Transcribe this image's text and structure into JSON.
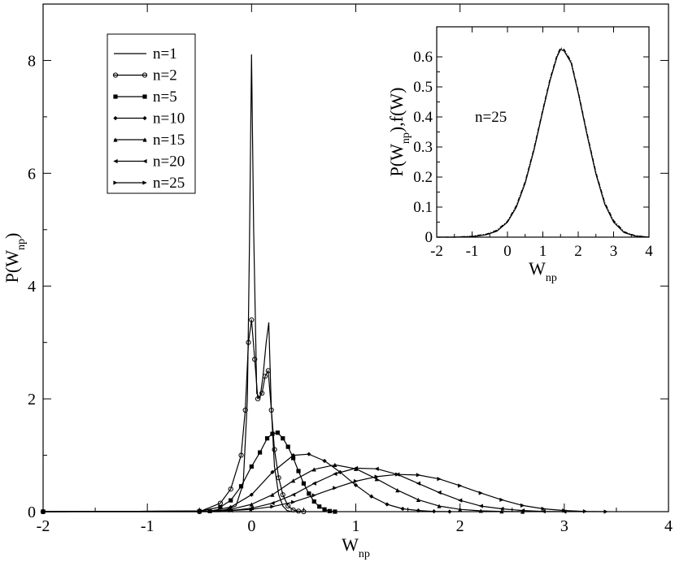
{
  "chart_data": [
    {
      "type": "line",
      "xlabel": "W",
      "xlabel_sub": "np",
      "ylabel": "P(W",
      "ylabel_sub": "np",
      "ylabel_close": ")",
      "xlim": [
        -2,
        4
      ],
      "ylim": [
        0,
        9
      ],
      "xticks": [
        -2,
        -1,
        0,
        1,
        2,
        3,
        4
      ],
      "xtick_labels": [
        "-2",
        "-1",
        "0",
        "1",
        "2",
        "3",
        "4"
      ],
      "yticks": [
        0,
        2,
        4,
        6,
        8
      ],
      "ytick_labels": [
        "0",
        "2",
        "4",
        "6",
        "8"
      ],
      "grid": false,
      "legend_position": "top-left",
      "series": [
        {
          "name": "n=1",
          "marker": "none",
          "x": [
            -2,
            -0.3,
            -0.15,
            -0.08,
            -0.04,
            -0.02,
            0.0,
            0.02,
            0.05,
            0.08,
            0.11,
            0.14,
            0.165,
            0.19,
            0.22,
            0.26,
            0.3,
            0.34,
            0.38
          ],
          "y": [
            0,
            0,
            0.1,
            0.5,
            2.0,
            4.8,
            8.1,
            5.0,
            2.1,
            2.0,
            2.4,
            3.0,
            3.35,
            1.8,
            0.8,
            0.3,
            0.1,
            0.02,
            0
          ]
        },
        {
          "name": "n=2",
          "marker": "circle",
          "x": [
            -2,
            -0.5,
            -0.3,
            -0.2,
            -0.1,
            -0.06,
            -0.03,
            0.0,
            0.03,
            0.06,
            0.1,
            0.13,
            0.16,
            0.19,
            0.22,
            0.26,
            0.3,
            0.35,
            0.4,
            0.45,
            0.5
          ],
          "y": [
            0,
            0,
            0.15,
            0.4,
            1.0,
            1.8,
            3.0,
            3.4,
            2.7,
            2.0,
            2.1,
            2.4,
            2.5,
            1.8,
            1.1,
            0.6,
            0.3,
            0.1,
            0.03,
            0.01,
            0
          ]
        },
        {
          "name": "n=5",
          "marker": "square",
          "x": [
            -2,
            -0.5,
            -0.3,
            -0.2,
            -0.1,
            0.0,
            0.08,
            0.15,
            0.2,
            0.25,
            0.3,
            0.35,
            0.4,
            0.45,
            0.5,
            0.55,
            0.6,
            0.65,
            0.7,
            0.75,
            0.8
          ],
          "y": [
            0,
            0.01,
            0.08,
            0.2,
            0.45,
            0.8,
            1.05,
            1.3,
            1.38,
            1.4,
            1.3,
            1.15,
            0.95,
            0.72,
            0.5,
            0.32,
            0.18,
            0.09,
            0.04,
            0.01,
            0
          ]
        },
        {
          "name": "n=10",
          "marker": "diamond",
          "x": [
            -2,
            -0.4,
            -0.2,
            0.0,
            0.2,
            0.4,
            0.55,
            0.7,
            0.85,
            1.0,
            1.15,
            1.3,
            1.45,
            1.6,
            1.75,
            1.9
          ],
          "y": [
            0,
            0.01,
            0.08,
            0.3,
            0.7,
            1.0,
            1.02,
            0.9,
            0.7,
            0.47,
            0.27,
            0.13,
            0.05,
            0.02,
            0.005,
            0
          ]
        },
        {
          "name": "n=15",
          "marker": "triangle-up",
          "x": [
            -2,
            -0.4,
            -0.2,
            0.0,
            0.2,
            0.4,
            0.6,
            0.8,
            1.0,
            1.2,
            1.4,
            1.6,
            1.8,
            2.0,
            2.2,
            2.4,
            2.6
          ],
          "y": [
            0,
            0.01,
            0.04,
            0.13,
            0.3,
            0.55,
            0.75,
            0.83,
            0.76,
            0.58,
            0.38,
            0.21,
            0.1,
            0.04,
            0.015,
            0.005,
            0
          ]
        },
        {
          "name": "n=20",
          "marker": "triangle-left",
          "x": [
            -2,
            -0.4,
            -0.2,
            0.0,
            0.2,
            0.4,
            0.6,
            0.8,
            1.0,
            1.2,
            1.4,
            1.6,
            1.8,
            2.0,
            2.2,
            2.4,
            2.6,
            2.8,
            3.0
          ],
          "y": [
            0,
            0.01,
            0.02,
            0.06,
            0.15,
            0.3,
            0.5,
            0.67,
            0.77,
            0.76,
            0.66,
            0.5,
            0.34,
            0.2,
            0.1,
            0.05,
            0.02,
            0.005,
            0
          ]
        },
        {
          "name": "n=25",
          "marker": "triangle-right",
          "x": [
            -2,
            -0.4,
            -0.2,
            0.0,
            0.2,
            0.4,
            0.6,
            0.8,
            1.0,
            1.2,
            1.4,
            1.6,
            1.8,
            2.0,
            2.2,
            2.4,
            2.6,
            2.8,
            3.0,
            3.2,
            3.4
          ],
          "y": [
            0,
            0.01,
            0.02,
            0.04,
            0.09,
            0.17,
            0.29,
            0.42,
            0.54,
            0.62,
            0.66,
            0.65,
            0.58,
            0.46,
            0.33,
            0.21,
            0.11,
            0.05,
            0.02,
            0.005,
            0
          ]
        }
      ]
    },
    {
      "type": "line",
      "annotation": "n=25",
      "xlabel": "W",
      "xlabel_sub": "np",
      "ylabel": "P(W",
      "ylabel_sub": "np",
      "ylabel_close": "),f(W)",
      "xlim": [
        -2,
        4
      ],
      "ylim": [
        0,
        0.7
      ],
      "xticks": [
        -2,
        -1,
        0,
        1,
        2,
        3,
        4
      ],
      "xtick_labels": [
        "-2",
        "-1",
        "0",
        "1",
        "2",
        "3",
        "4"
      ],
      "yticks": [
        0,
        0.1,
        0.2,
        0.3,
        0.4,
        0.5,
        0.6
      ],
      "ytick_labels": [
        "0",
        "0.1",
        "0.2",
        "0.3",
        "0.4",
        "0.5",
        "0.6"
      ],
      "grid": false,
      "series": [
        {
          "style": "solid",
          "x": [
            -2,
            -1.5,
            -1.0,
            -0.6,
            -0.3,
            0.0,
            0.25,
            0.5,
            0.75,
            1.0,
            1.2,
            1.4,
            1.5,
            1.6,
            1.8,
            2.0,
            2.25,
            2.5,
            2.75,
            3.0,
            3.3,
            3.6,
            4.0
          ],
          "y": [
            0,
            0,
            0.002,
            0.008,
            0.02,
            0.05,
            0.1,
            0.18,
            0.29,
            0.42,
            0.52,
            0.6,
            0.625,
            0.62,
            0.58,
            0.48,
            0.34,
            0.21,
            0.11,
            0.05,
            0.015,
            0.004,
            0
          ]
        },
        {
          "style": "dash-dot",
          "x": [
            -2,
            -1.5,
            -1.0,
            -0.6,
            -0.3,
            0.0,
            0.25,
            0.5,
            0.75,
            1.0,
            1.2,
            1.4,
            1.5,
            1.6,
            1.8,
            2.0,
            2.25,
            2.5,
            2.75,
            3.0,
            3.3,
            3.6,
            4.0
          ],
          "y": [
            0,
            0,
            0.003,
            0.01,
            0.023,
            0.053,
            0.105,
            0.185,
            0.295,
            0.425,
            0.525,
            0.605,
            0.63,
            0.625,
            0.585,
            0.485,
            0.345,
            0.215,
            0.115,
            0.055,
            0.018,
            0.005,
            0
          ]
        }
      ]
    }
  ]
}
